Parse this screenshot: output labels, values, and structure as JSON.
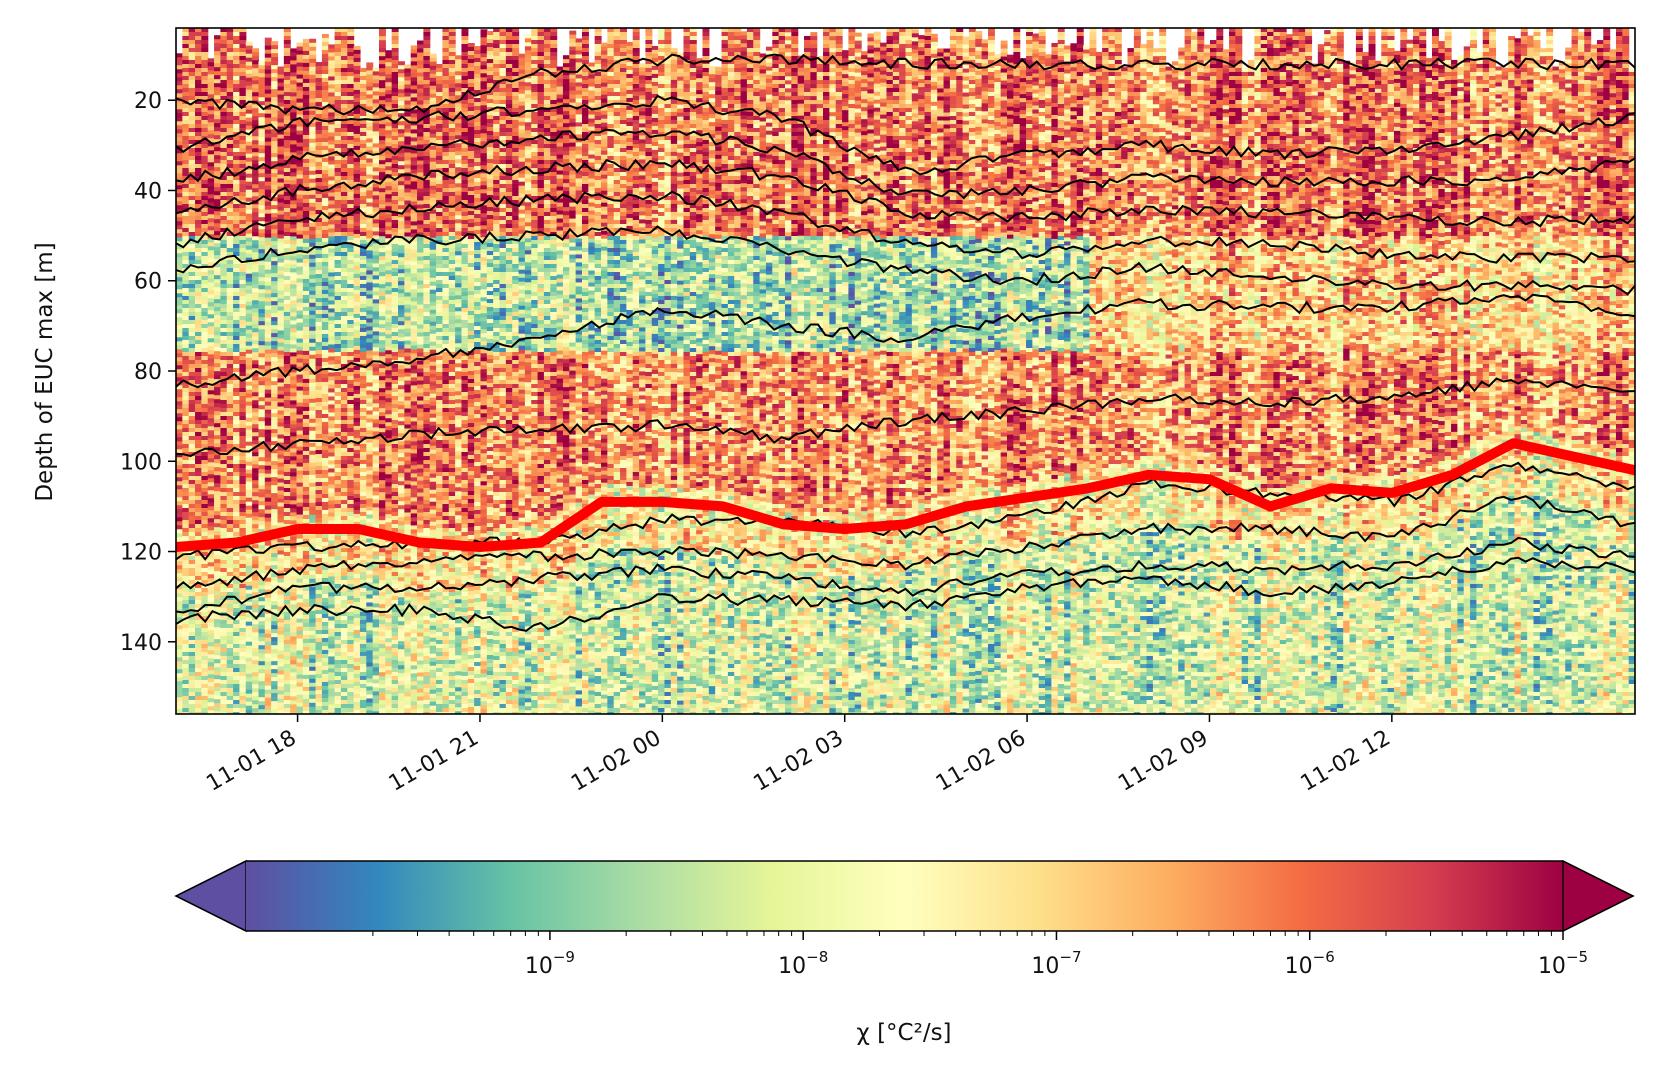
{
  "chart_data": {
    "type": "heatmap",
    "title": "",
    "ylabel": "Depth of EUC max [m]",
    "ylim": [
      156,
      4
    ],
    "y_inverted": true,
    "yticks": [
      20,
      40,
      60,
      80,
      100,
      120,
      140
    ],
    "ytick_labels": [
      "20",
      "40",
      "60",
      "80",
      "100",
      "120",
      "140"
    ],
    "xlim_hours": [
      16.0,
      40.0
    ],
    "xticks_hours": [
      18,
      21,
      24,
      27,
      30,
      33,
      36
    ],
    "xtick_labels": [
      "11-01 18",
      "11-01 21",
      "11-02 00",
      "11-02 03",
      "11-02 06",
      "11-02 09",
      "11-02 12"
    ],
    "colorbar": {
      "label": "χ [°C²/s]",
      "scale": "log",
      "vmin_exp": -10.2,
      "vmax_exp": -5.0,
      "tick_exponents": [
        -9,
        -8,
        -7,
        -6,
        -5
      ],
      "tick_labels": [
        "10",
        "10",
        "10",
        "10",
        "10"
      ],
      "tick_superscripts": [
        "−9",
        "−8",
        "−7",
        "−6",
        "−5"
      ],
      "colormap": "Spectral_r",
      "extend": "both"
    },
    "series": [
      {
        "color": "#ff0000",
        "role": "EUC max depth",
        "x_hours": [
          16.0,
          17.0,
          18.0,
          19.0,
          20.0,
          21.0,
          22.0,
          23.0,
          24.0,
          25.0,
          26.0,
          27.0,
          28.0,
          29.0,
          30.0,
          31.0,
          32.0,
          33.0,
          34.0,
          35.0,
          36.0,
          37.0,
          38.0,
          39.0,
          40.0
        ],
        "y": [
          119,
          118,
          115,
          115,
          118,
          119,
          118,
          109,
          109,
          110,
          114,
          115,
          114,
          110,
          108,
          106,
          103,
          104,
          110,
          106,
          107,
          103,
          96,
          99,
          102
        ]
      }
    ],
    "isotherms": [
      {
        "color": "#000000",
        "x_hours": [
          16,
          18,
          20,
          22,
          24,
          26,
          28,
          30,
          32,
          34,
          36,
          38,
          40
        ],
        "y": [
          20,
          22,
          22,
          14,
          11,
          11,
          12,
          12,
          12,
          12,
          12,
          12,
          12
        ]
      },
      {
        "color": "#000000",
        "x_hours": [
          16,
          18,
          20,
          22,
          24,
          26,
          28,
          30,
          32,
          34,
          36,
          38,
          40
        ],
        "y": [
          31,
          25,
          24,
          22,
          20,
          24,
          36,
          32,
          30,
          32,
          31,
          28,
          24
        ]
      },
      {
        "color": "#000000",
        "x_hours": [
          16,
          18,
          20,
          22,
          24,
          26,
          28,
          30,
          32,
          34,
          36,
          38,
          40
        ],
        "y": [
          38,
          33,
          31,
          28,
          27,
          31,
          41,
          40,
          37,
          38,
          38,
          38,
          33
        ]
      },
      {
        "color": "#000000",
        "x_hours": [
          16,
          18,
          20,
          22,
          24,
          26,
          28,
          30,
          32,
          34,
          36,
          38,
          40
        ],
        "y": [
          45,
          40,
          37,
          35,
          34,
          37,
          45,
          46,
          44,
          45,
          46,
          47,
          46
        ]
      },
      {
        "color": "#000000",
        "x_hours": [
          16,
          18,
          20,
          22,
          24,
          26,
          28,
          30,
          32,
          34,
          36,
          38,
          40
        ],
        "y": [
          52,
          46,
          44,
          42,
          41,
          45,
          52,
          54,
          51,
          52,
          54,
          55,
          55
        ]
      },
      {
        "color": "#000000",
        "x_hours": [
          16,
          18,
          20,
          22,
          24,
          26,
          28,
          30,
          32,
          34,
          36,
          38,
          40
        ],
        "y": [
          58,
          53,
          51,
          50,
          49,
          53,
          58,
          60,
          57,
          59,
          61,
          61,
          62
        ]
      },
      {
        "color": "#000000",
        "x_hours": [
          16,
          18,
          20,
          22,
          24,
          26,
          28,
          30,
          32,
          34,
          36,
          38,
          40
        ],
        "y": [
          83,
          80,
          77,
          73,
          66,
          70,
          73,
          68,
          65,
          66,
          66,
          63,
          67
        ]
      },
      {
        "color": "#000000",
        "x_hours": [
          16,
          18,
          20,
          22,
          24,
          26,
          28,
          30,
          32,
          34,
          36,
          38,
          40
        ],
        "y": [
          99,
          96,
          94,
          93,
          92,
          95,
          91,
          89,
          86,
          87,
          86,
          82,
          84
        ]
      },
      {
        "color": "#000000",
        "x_hours": [
          16,
          18,
          20,
          22,
          24,
          26,
          28,
          30,
          32,
          34,
          36,
          38,
          40
        ],
        "y": [
          121,
          119,
          118,
          118,
          113,
          113,
          116,
          112,
          105,
          107,
          109,
          101,
          106
        ]
      },
      {
        "color": "#000000",
        "x_hours": [
          16,
          18,
          20,
          22,
          24,
          26,
          28,
          30,
          32,
          34,
          36,
          38,
          40
        ],
        "y": [
          128,
          124,
          122,
          121,
          120,
          121,
          123,
          119,
          115,
          115,
          117,
          108,
          114
        ]
      },
      {
        "color": "#000000",
        "x_hours": [
          16,
          18,
          20,
          22,
          24,
          26,
          28,
          30,
          32,
          34,
          36,
          38,
          40
        ],
        "y": [
          133,
          128,
          128,
          126,
          124,
          126,
          129,
          125,
          123,
          124,
          123,
          118,
          121
        ]
      },
      {
        "color": "#000000",
        "x_hours": [
          16,
          18,
          20,
          22,
          24,
          26,
          28,
          30,
          32,
          34,
          36,
          38,
          40
        ],
        "y": [
          135,
          133,
          133,
          137,
          130,
          131,
          132,
          128,
          126,
          129,
          127,
          122,
          124
        ]
      }
    ]
  }
}
